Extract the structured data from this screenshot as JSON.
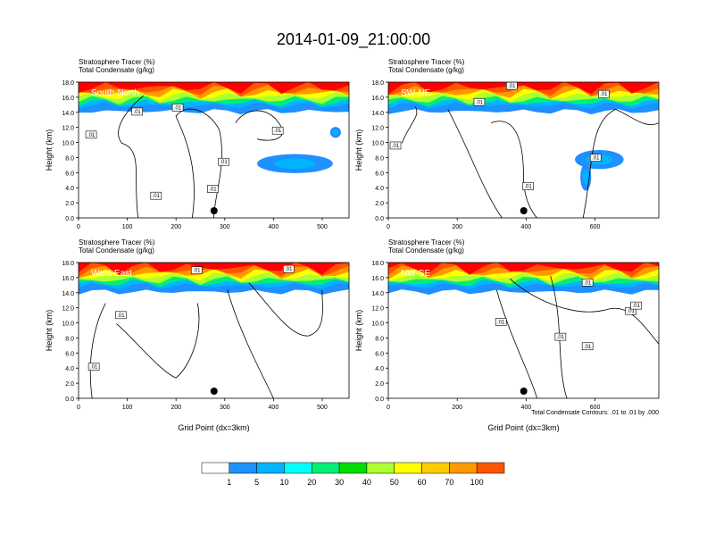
{
  "page_title": "2014-01-09_21:00:00",
  "colorbar": {
    "labels": [
      "1",
      "5",
      "10",
      "20",
      "30",
      "40",
      "50",
      "60",
      "70",
      "100"
    ],
    "colors": [
      "#ffffff",
      "#1e90ff",
      "#00b4ff",
      "#00ffff",
      "#00ee76",
      "#00dd00",
      "#adff2f",
      "#ffff00",
      "#ffcc00",
      "#ff9900",
      "#ff5500",
      "#ff0000"
    ]
  },
  "contour_note": "Total Condensate Contours: .01 to .01 by .000",
  "chart_data": [
    {
      "type": "heatmap",
      "panel": "South-North",
      "title_line1": "Stratosphere Tracer    (%)",
      "title_line2": "Total Condensate    (g/kg)",
      "ylabel": "Height (km)",
      "xlabel": "",
      "xlim": [
        0,
        555
      ],
      "ylim": [
        0,
        18
      ],
      "xticks": [
        "0",
        "100",
        "200",
        "300",
        "400",
        "500"
      ],
      "yticks": [
        "0.0",
        "2.0",
        "4.0",
        "6.0",
        "8.0",
        "10.0",
        "12.0",
        "14.0",
        "16.0",
        "18.0"
      ],
      "contour_labels": [
        ".01",
        ".01",
        ".01",
        ".01",
        ".01",
        ".01",
        ".01"
      ],
      "marker_x": 278
    },
    {
      "type": "heatmap",
      "panel": "SW-NE",
      "title_line1": "Stratosphere Tracer    (%)",
      "title_line2": "Total Condensate    (g/kg)",
      "ylabel": "Height (km)",
      "xlabel": "",
      "xlim": [
        0,
        785
      ],
      "ylim": [
        0,
        18
      ],
      "xticks": [
        "0",
        "200",
        "400",
        "600"
      ],
      "yticks": [
        "0.0",
        "2.0",
        "4.0",
        "6.0",
        "8.0",
        "10.0",
        "12.0",
        "14.0",
        "16.0",
        "18.0"
      ],
      "contour_labels": [
        ".01",
        ".01",
        ".01",
        ".01",
        ".01",
        ".01"
      ],
      "marker_x": 393
    },
    {
      "type": "heatmap",
      "panel": "West-East",
      "title_line1": "Stratosphere Tracer    (%)",
      "title_line2": "Total Condensate    (g/kg)",
      "ylabel": "Height (km)",
      "xlabel": "Grid Point (dx=3km)",
      "xlim": [
        0,
        555
      ],
      "ylim": [
        0,
        18
      ],
      "xticks": [
        "0",
        "100",
        "200",
        "300",
        "400",
        "500"
      ],
      "yticks": [
        "0.0",
        "2.0",
        "4.0",
        "6.0",
        "8.0",
        "10.0",
        "12.0",
        "14.0",
        "16.0",
        "18.0"
      ],
      "contour_labels": [
        ".01",
        ".01",
        ".01",
        ".01"
      ],
      "marker_x": 278
    },
    {
      "type": "heatmap",
      "panel": "NW-SE",
      "title_line1": "Stratosphere Tracer    (%)",
      "title_line2": "Total Condensate    (g/kg)",
      "ylabel": "Height (km)",
      "xlabel": "Grid Point (dx=3km)",
      "xlim": [
        0,
        785
      ],
      "ylim": [
        0,
        18
      ],
      "xticks": [
        "0",
        "200",
        "400",
        "600"
      ],
      "yticks": [
        "0.0",
        "2.0",
        "4.0",
        "6.0",
        "8.0",
        "10.0",
        "12.0",
        "14.0",
        "16.0",
        "18.0"
      ],
      "contour_labels": [
        ".01",
        ".01",
        ".01",
        ".01",
        ".01",
        ".01"
      ],
      "marker_x": 393
    }
  ]
}
